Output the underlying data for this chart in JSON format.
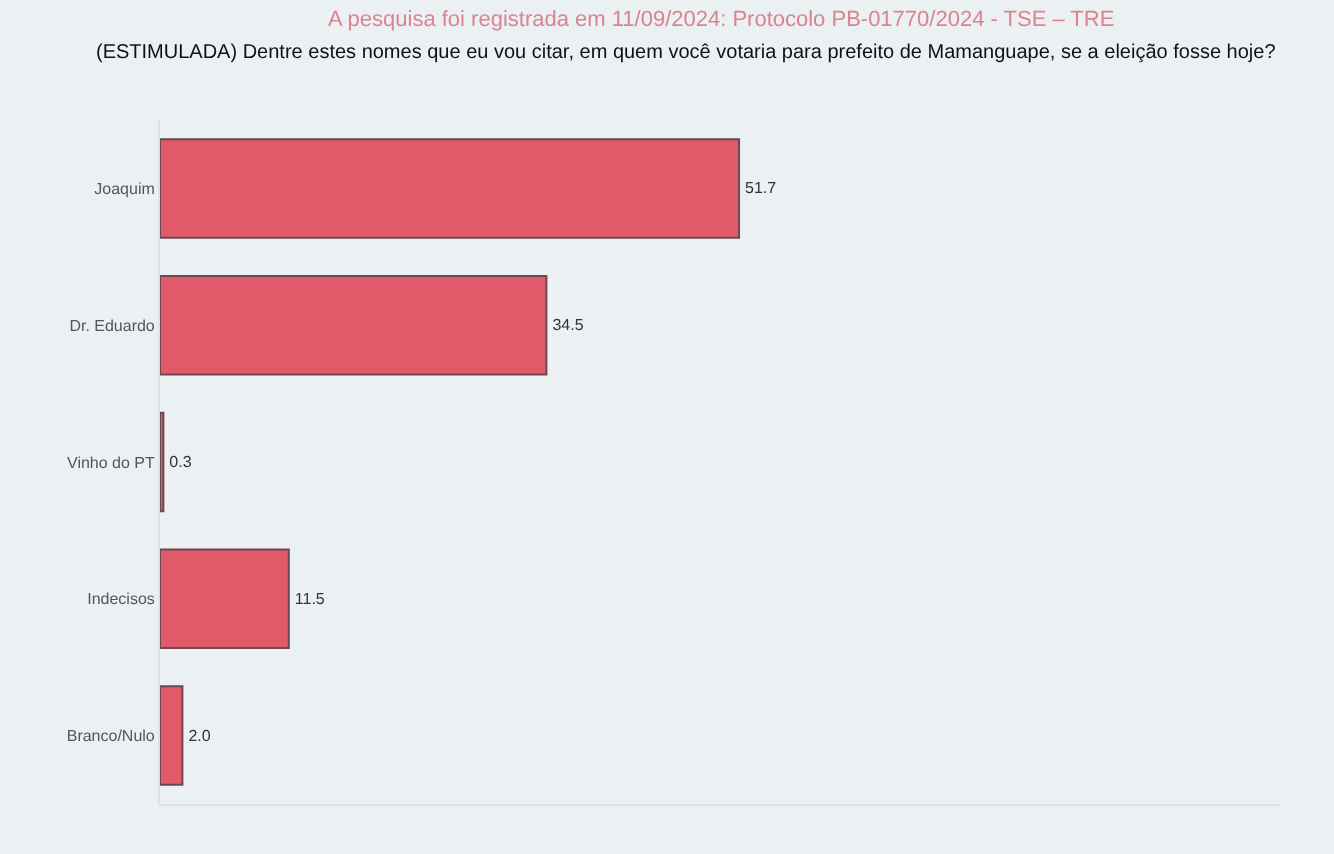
{
  "chart_data": {
    "type": "bar",
    "orientation": "horizontal",
    "subtitle": "A pesquisa foi registrada em 11/09/2024: Protocolo PB-01770/2024 - TSE – TRE",
    "title": "(ESTIMULADA) Dentre estes nomes que eu vou citar, em quem você votaria para prefeito de Mamanguape, se a eleição fosse hoje?",
    "categories": [
      "Joaquim",
      "Dr. Eduardo",
      "Vinho do PT",
      "Indecisos",
      "Branco/Nulo"
    ],
    "values": [
      51.7,
      34.5,
      0.3,
      11.5,
      2.0
    ],
    "value_labels": [
      "51.7",
      "34.5",
      "0.3",
      "11.5",
      "2.0"
    ],
    "color": "#e05a6a",
    "xlim": [
      0,
      100
    ],
    "tick_labels": "y",
    "grid": false,
    "legend": false
  }
}
